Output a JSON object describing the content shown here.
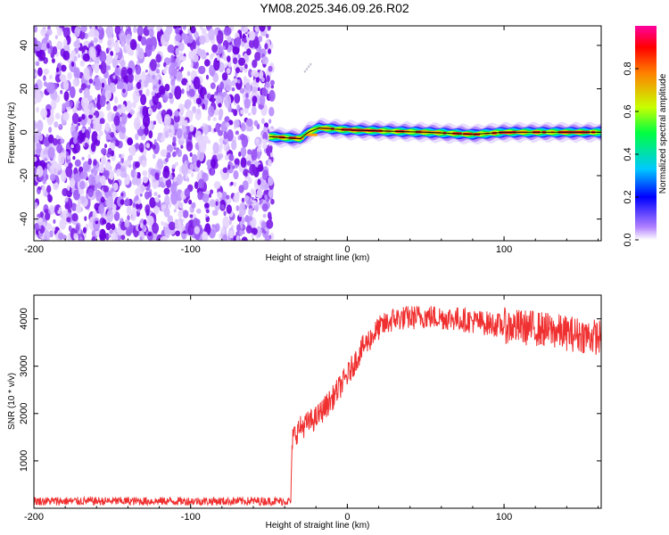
{
  "title": "YM08.2025.346.09.26.R02",
  "chart_data": [
    {
      "type": "heatmap",
      "title": "YM08.2025.346.09.26.R02",
      "xlabel": "Height of straight line (km)",
      "ylabel": "Frequency (Hz)",
      "xlim": [
        -200,
        162
      ],
      "ylim": [
        -50,
        49
      ],
      "xticks": [
        -200,
        -100,
        0,
        100
      ],
      "yticks": [
        -40,
        -20,
        0,
        20,
        40
      ],
      "noise_region_x": [
        -200,
        -50
      ],
      "signal_band": {
        "x_start": -50,
        "x_end": 162,
        "center_hz": [
          {
            "x": -50,
            "f": -2
          },
          {
            "x": -30,
            "f": -3
          },
          {
            "x": -25,
            "f": 0
          },
          {
            "x": -18,
            "f": 2
          },
          {
            "x": 0,
            "f": 1
          },
          {
            "x": 50,
            "f": 0
          },
          {
            "x": 80,
            "f": -1
          },
          {
            "x": 100,
            "f": 0
          },
          {
            "x": 162,
            "f": 0
          }
        ]
      },
      "colorbar": {
        "label": "Normalized spectral amplitude",
        "ticks": [
          "0.0",
          "0.2",
          "0.4",
          "0.6",
          "0.8"
        ],
        "range": [
          0,
          1
        ],
        "colors": [
          "#ffffff",
          "#7b00d6",
          "#0000ff",
          "#00c8ff",
          "#00ff40",
          "#c8ff00",
          "#ff8000",
          "#ff0000",
          "#ff00a0"
        ]
      }
    },
    {
      "type": "line",
      "xlabel": "Height of straight line (km)",
      "ylabel": "SNR (10 * v/v)",
      "xlim": [
        -200,
        162
      ],
      "ylim": [
        0,
        4500
      ],
      "xticks": [
        -200,
        -100,
        0,
        100
      ],
      "yticks": [
        1000,
        2000,
        3000,
        4000
      ],
      "color": "#f03030",
      "series": [
        {
          "name": "SNR",
          "x": [
            -200,
            -150,
            -100,
            -60,
            -36,
            -35,
            -30,
            -20,
            -10,
            0,
            10,
            20,
            30,
            50,
            70,
            100,
            120,
            140,
            162
          ],
          "y": [
            150,
            150,
            150,
            150,
            150,
            1500,
            1700,
            1900,
            2300,
            2800,
            3400,
            3800,
            4000,
            4050,
            4000,
            3850,
            3800,
            3700,
            3600
          ]
        }
      ]
    }
  ]
}
